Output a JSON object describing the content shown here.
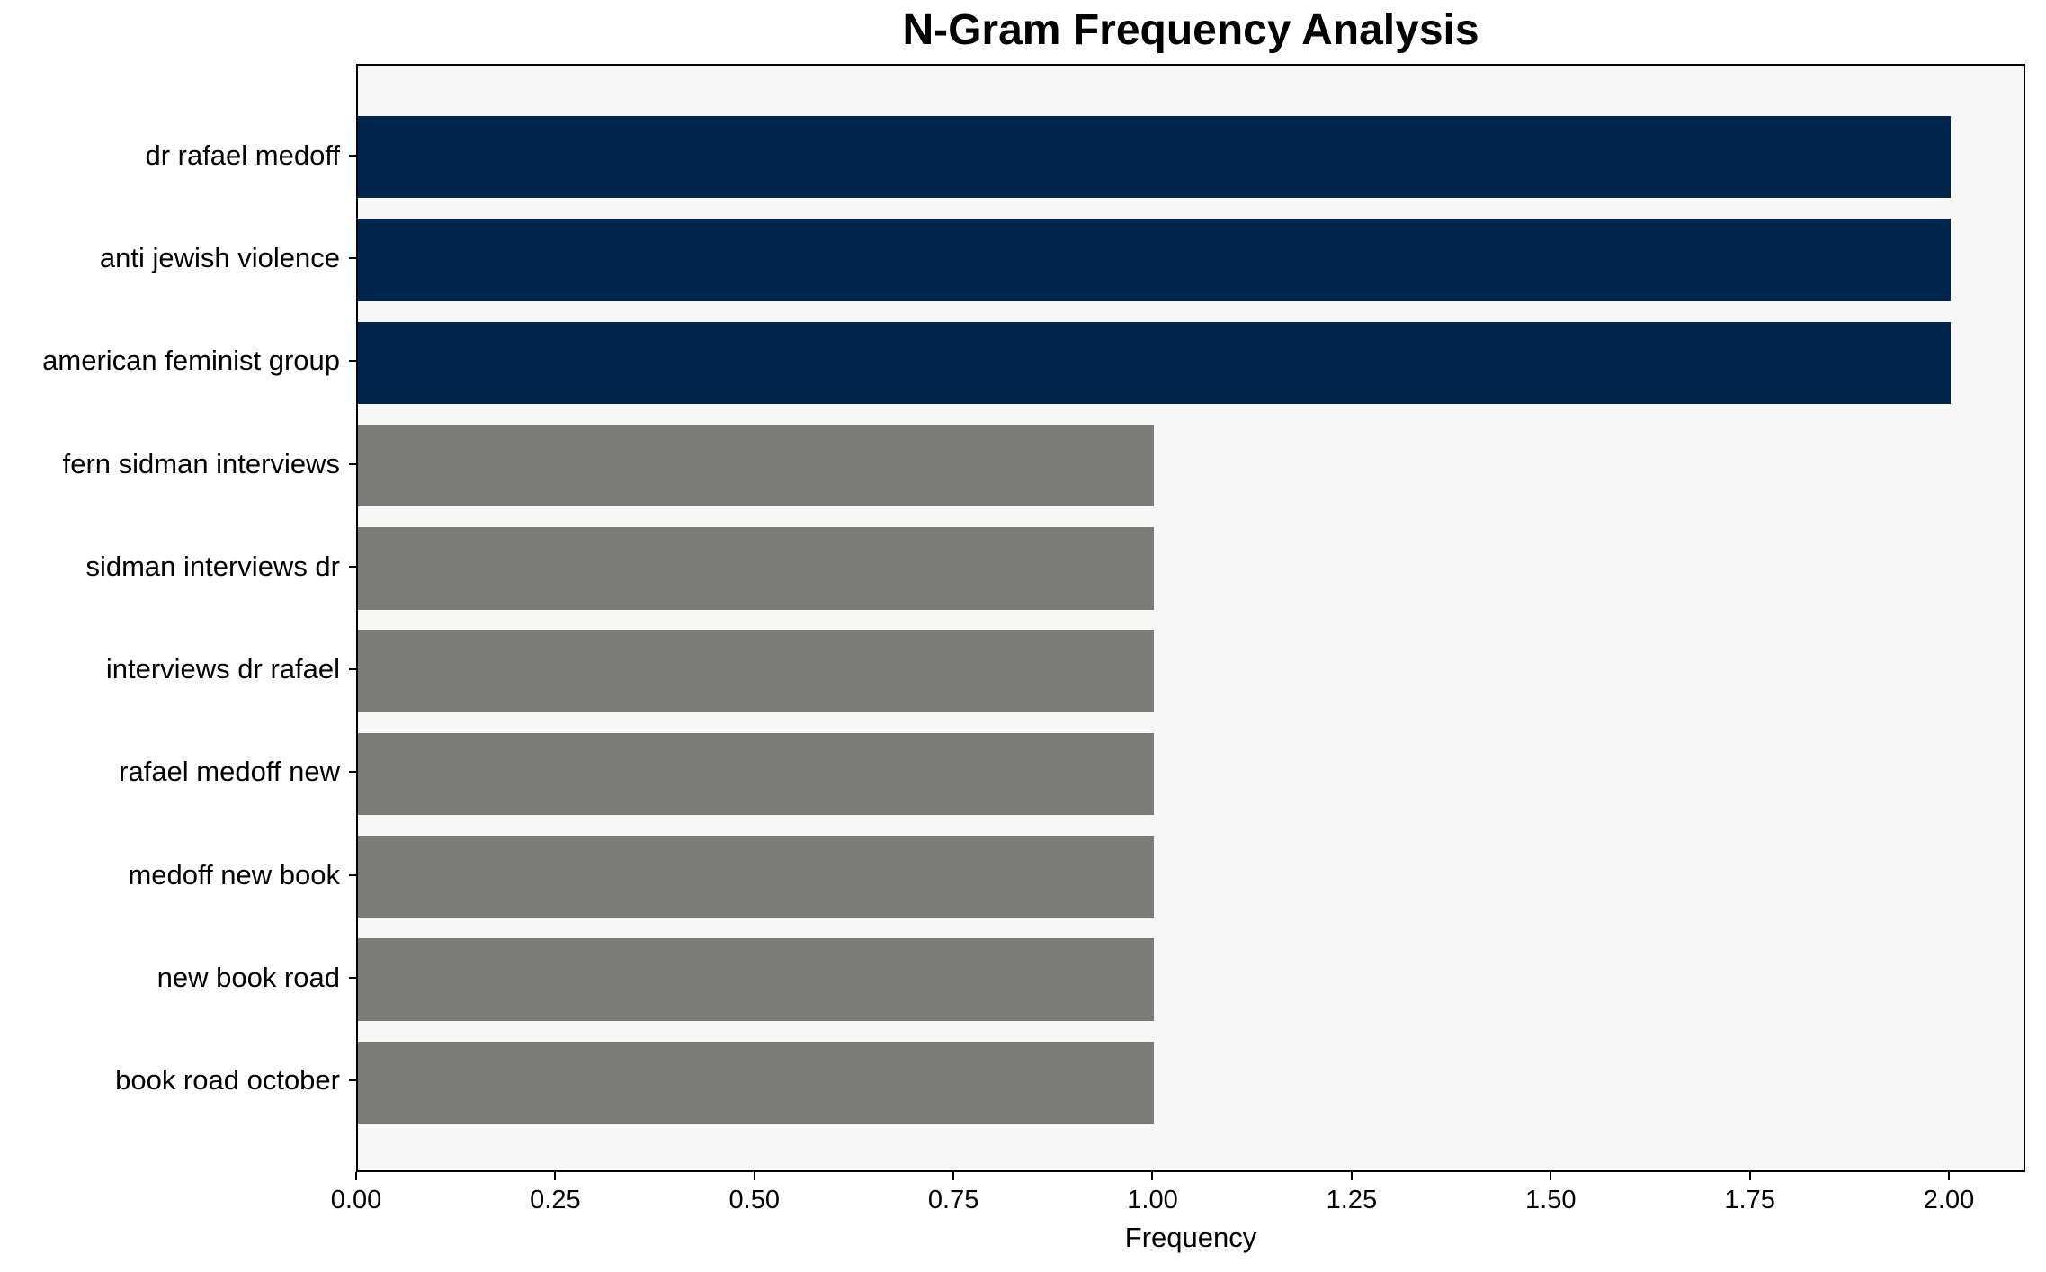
{
  "chart_data": {
    "type": "bar",
    "orientation": "horizontal",
    "title": "N-Gram Frequency Analysis",
    "xlabel": "Frequency",
    "ylabel": "",
    "categories": [
      "dr rafael medoff",
      "anti jewish violence",
      "american feminist group",
      "fern sidman interviews",
      "sidman interviews dr",
      "interviews dr rafael",
      "rafael medoff new",
      "medoff new book",
      "new book road",
      "book road october"
    ],
    "values": [
      2,
      2,
      2,
      1,
      1,
      1,
      1,
      1,
      1,
      1
    ],
    "bar_colors": [
      "#02254d",
      "#02254d",
      "#02254d",
      "#7b7b78",
      "#7b7b78",
      "#7b7b78",
      "#7b7b78",
      "#7b7b78",
      "#7b7b78",
      "#7b7b78"
    ],
    "highlight_color": "#02254d",
    "default_color": "#7b7b78",
    "plot_bg": "#f7f7f7",
    "figure_bg": "#ffffff",
    "xlim": [
      0,
      2.096
    ],
    "bar_height_frac": 0.8,
    "grid": false,
    "legend": false,
    "xticks": [
      {
        "value": 0.0,
        "label": "0.00"
      },
      {
        "value": 0.25,
        "label": "0.25"
      },
      {
        "value": 0.5,
        "label": "0.50"
      },
      {
        "value": 0.75,
        "label": "0.75"
      },
      {
        "value": 1.0,
        "label": "1.00"
      },
      {
        "value": 1.25,
        "label": "1.25"
      },
      {
        "value": 1.5,
        "label": "1.50"
      },
      {
        "value": 1.75,
        "label": "1.75"
      },
      {
        "value": 2.0,
        "label": "2.00"
      }
    ]
  }
}
